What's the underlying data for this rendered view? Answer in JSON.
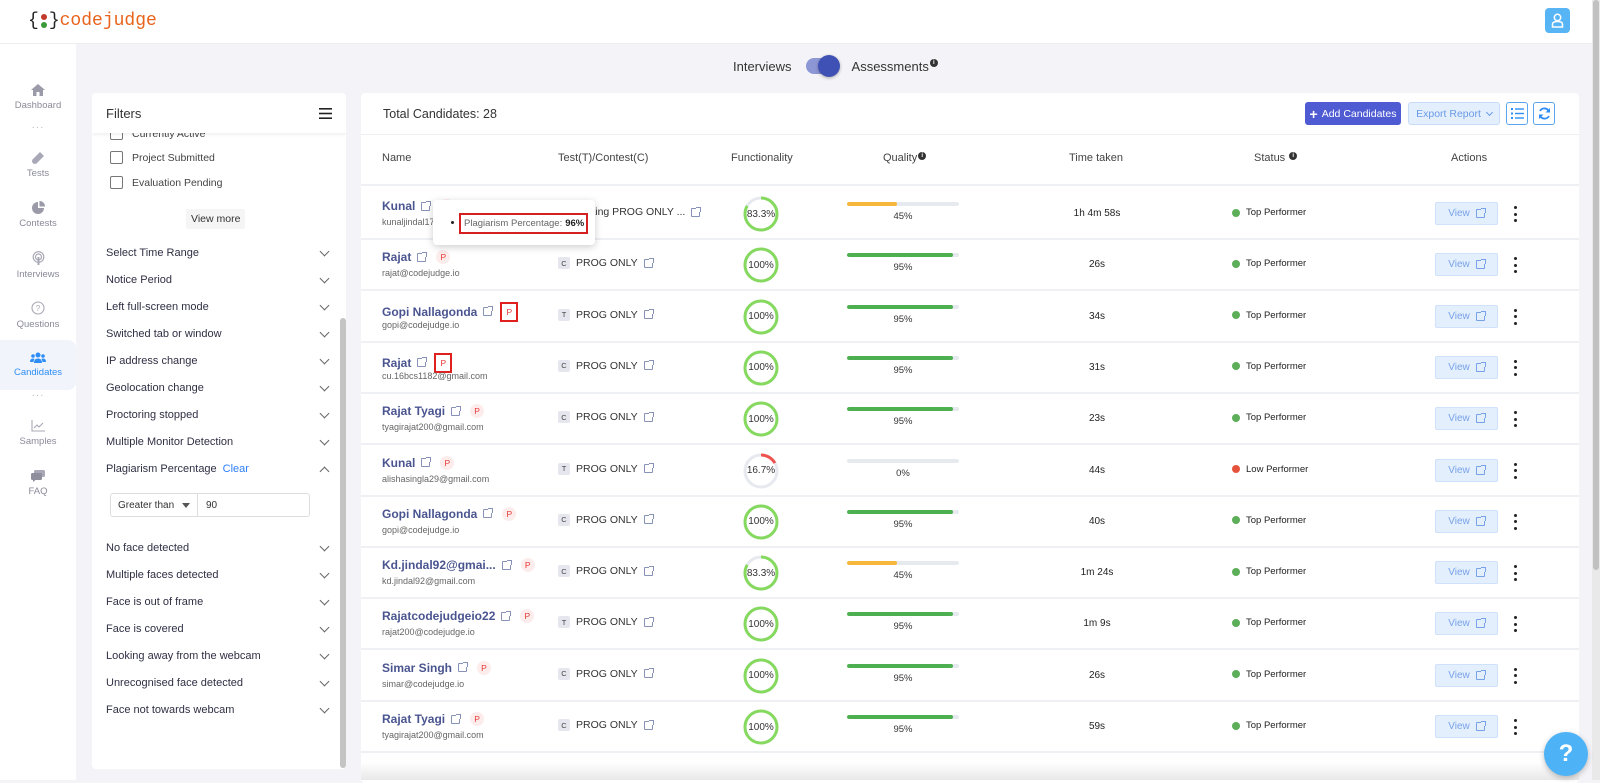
{
  "app": {
    "logo_text": "codejudge",
    "logo_brace_open": "{",
    "logo_brace_close": "}"
  },
  "header": {
    "user_icon": "user-icon"
  },
  "sidebar": {
    "items": [
      {
        "label": "Dashboard",
        "icon": "home-icon",
        "active": false
      },
      {
        "label": "Tests",
        "icon": "test-tube-icon",
        "active": false
      },
      {
        "label": "Contests",
        "icon": "pie-chart-icon",
        "active": false
      },
      {
        "label": "Interviews",
        "icon": "podcast-icon",
        "active": false
      },
      {
        "label": "Questions",
        "icon": "question-circle-icon",
        "active": false
      },
      {
        "label": "Candidates",
        "icon": "users-icon",
        "active": true
      },
      {
        "label": "Samples",
        "icon": "chart-line-icon",
        "active": false
      },
      {
        "label": "FAQ",
        "icon": "chat-icon",
        "active": false
      }
    ]
  },
  "mode_toggle": {
    "left_label": "Interviews",
    "right_label": "Assessments",
    "selected": "Assessments"
  },
  "filters": {
    "title": "Filters",
    "checkboxes": [
      {
        "label": "Currently Active",
        "checked": false
      },
      {
        "label": "Project Submitted",
        "checked": false
      },
      {
        "label": "Evaluation Pending",
        "checked": false
      }
    ],
    "view_more_label": "View more",
    "sections": [
      {
        "label": "Select Time Range",
        "expanded": false
      },
      {
        "label": "Notice Period",
        "expanded": false
      },
      {
        "label": "Left full-screen mode",
        "expanded": false
      },
      {
        "label": "Switched tab or window",
        "expanded": false
      },
      {
        "label": "IP address change",
        "expanded": false
      },
      {
        "label": "Geolocation change",
        "expanded": false
      },
      {
        "label": "Proctoring stopped",
        "expanded": false
      },
      {
        "label": "Multiple Monitor Detection",
        "expanded": false
      },
      {
        "label": "Plagiarism Percentage",
        "expanded": true,
        "clear_label": "Clear"
      },
      {
        "label": "No face detected",
        "expanded": false
      },
      {
        "label": "Multiple faces detected",
        "expanded": false
      },
      {
        "label": "Face is out of frame",
        "expanded": false
      },
      {
        "label": "Face is covered",
        "expanded": false
      },
      {
        "label": "Looking away from the webcam",
        "expanded": false
      },
      {
        "label": "Unrecognised face detected",
        "expanded": false
      },
      {
        "label": "Face not towards webcam",
        "expanded": false
      }
    ],
    "plagiarism": {
      "operator": "Greater than",
      "value": "90"
    }
  },
  "main": {
    "total_label": "Total Candidates: 28",
    "add_button": "Add Candidates",
    "export_button": "Export Report",
    "columns": [
      "Name",
      "Test(T)/Contest(C)",
      "Functionality",
      "Quality",
      "Time taken",
      "Status",
      "Actions"
    ],
    "view_label": "View",
    "rows": [
      {
        "name": "Kunal",
        "email": "kunaljindal17...",
        "type": "C",
        "test": "Testing PROG ONLY ...",
        "functionality": "83.3%",
        "func_value": 83.3,
        "quality": "45%",
        "quality_value": 45,
        "time": "1h 4m 58s",
        "status": "Top Performer",
        "status_color": "#5cae58",
        "p_boxed": false
      },
      {
        "name": "Rajat",
        "email": "rajat@codejudge.io",
        "type": "C",
        "test": "PROG ONLY",
        "functionality": "100%",
        "func_value": 100,
        "quality": "95%",
        "quality_value": 95,
        "time": "26s",
        "status": "Top Performer",
        "status_color": "#5cae58",
        "p_boxed": false
      },
      {
        "name": "Gopi Nallagonda",
        "email": "gopi@codejudge.io",
        "type": "T",
        "test": "PROG ONLY",
        "functionality": "100%",
        "func_value": 100,
        "quality": "95%",
        "quality_value": 95,
        "time": "34s",
        "status": "Top Performer",
        "status_color": "#5cae58",
        "p_boxed": true
      },
      {
        "name": "Rajat",
        "email": "cu.16bcs1182@gmail.com",
        "type": "C",
        "test": "PROG ONLY",
        "functionality": "100%",
        "func_value": 100,
        "quality": "95%",
        "quality_value": 95,
        "time": "31s",
        "status": "Top Performer",
        "status_color": "#5cae58",
        "p_boxed": true
      },
      {
        "name": "Rajat Tyagi",
        "email": "tyagirajat200@gmail.com",
        "type": "C",
        "test": "PROG ONLY",
        "functionality": "100%",
        "func_value": 100,
        "quality": "95%",
        "quality_value": 95,
        "time": "23s",
        "status": "Top Performer",
        "status_color": "#5cae58",
        "p_boxed": false
      },
      {
        "name": "Kunal",
        "email": "alishasingla29@gmail.com",
        "type": "T",
        "test": "PROG ONLY",
        "functionality": "16.7%",
        "func_value": 16.7,
        "quality": "0%",
        "quality_value": 0,
        "time": "44s",
        "status": "Low Performer",
        "status_color": "#e5533d",
        "p_boxed": false
      },
      {
        "name": "Gopi Nallagonda",
        "email": "gopi@codejudge.io",
        "type": "C",
        "test": "PROG ONLY",
        "functionality": "100%",
        "func_value": 100,
        "quality": "95%",
        "quality_value": 95,
        "time": "40s",
        "status": "Top Performer",
        "status_color": "#5cae58",
        "p_boxed": false
      },
      {
        "name": "Kd.jindal92@gmai...",
        "email": "kd.jindal92@gmail.com",
        "type": "C",
        "test": "PROG ONLY",
        "functionality": "83.3%",
        "func_value": 83.3,
        "quality": "45%",
        "quality_value": 45,
        "time": "1m 24s",
        "status": "Top Performer",
        "status_color": "#5cae58",
        "p_boxed": false
      },
      {
        "name": "Rajatcodejudgeio22",
        "email": "rajat200@codejudge.io",
        "type": "T",
        "test": "PROG ONLY",
        "functionality": "100%",
        "func_value": 100,
        "quality": "95%",
        "quality_value": 95,
        "time": "1m 9s",
        "status": "Top Performer",
        "status_color": "#5cae58",
        "p_boxed": false
      },
      {
        "name": "Simar Singh",
        "email": "simar@codejudge.io",
        "type": "C",
        "test": "PROG ONLY",
        "functionality": "100%",
        "func_value": 100,
        "quality": "95%",
        "quality_value": 95,
        "time": "26s",
        "status": "Top Performer",
        "status_color": "#5cae58",
        "p_boxed": false
      },
      {
        "name": "Rajat Tyagi",
        "email": "tyagirajat200@gmail.com",
        "type": "C",
        "test": "PROG ONLY",
        "functionality": "100%",
        "func_value": 100,
        "quality": "95%",
        "quality_value": 95,
        "time": "59s",
        "status": "Top Performer",
        "status_color": "#5cae58",
        "p_boxed": false
      }
    ]
  },
  "tooltip": {
    "label": "Plagiarism Percentage:",
    "value": "96%"
  },
  "plagiarism_badge": "P",
  "help_button": "?",
  "colors": {
    "primary": "#4e5bd3",
    "accent_blue": "#2d8ef7",
    "func_green": "#86d95f",
    "func_red": "#ef5350",
    "quality_green": "#4caf50",
    "quality_orange": "#f6b73c",
    "top_performer": "#5cae58",
    "low_performer": "#e5533d"
  }
}
